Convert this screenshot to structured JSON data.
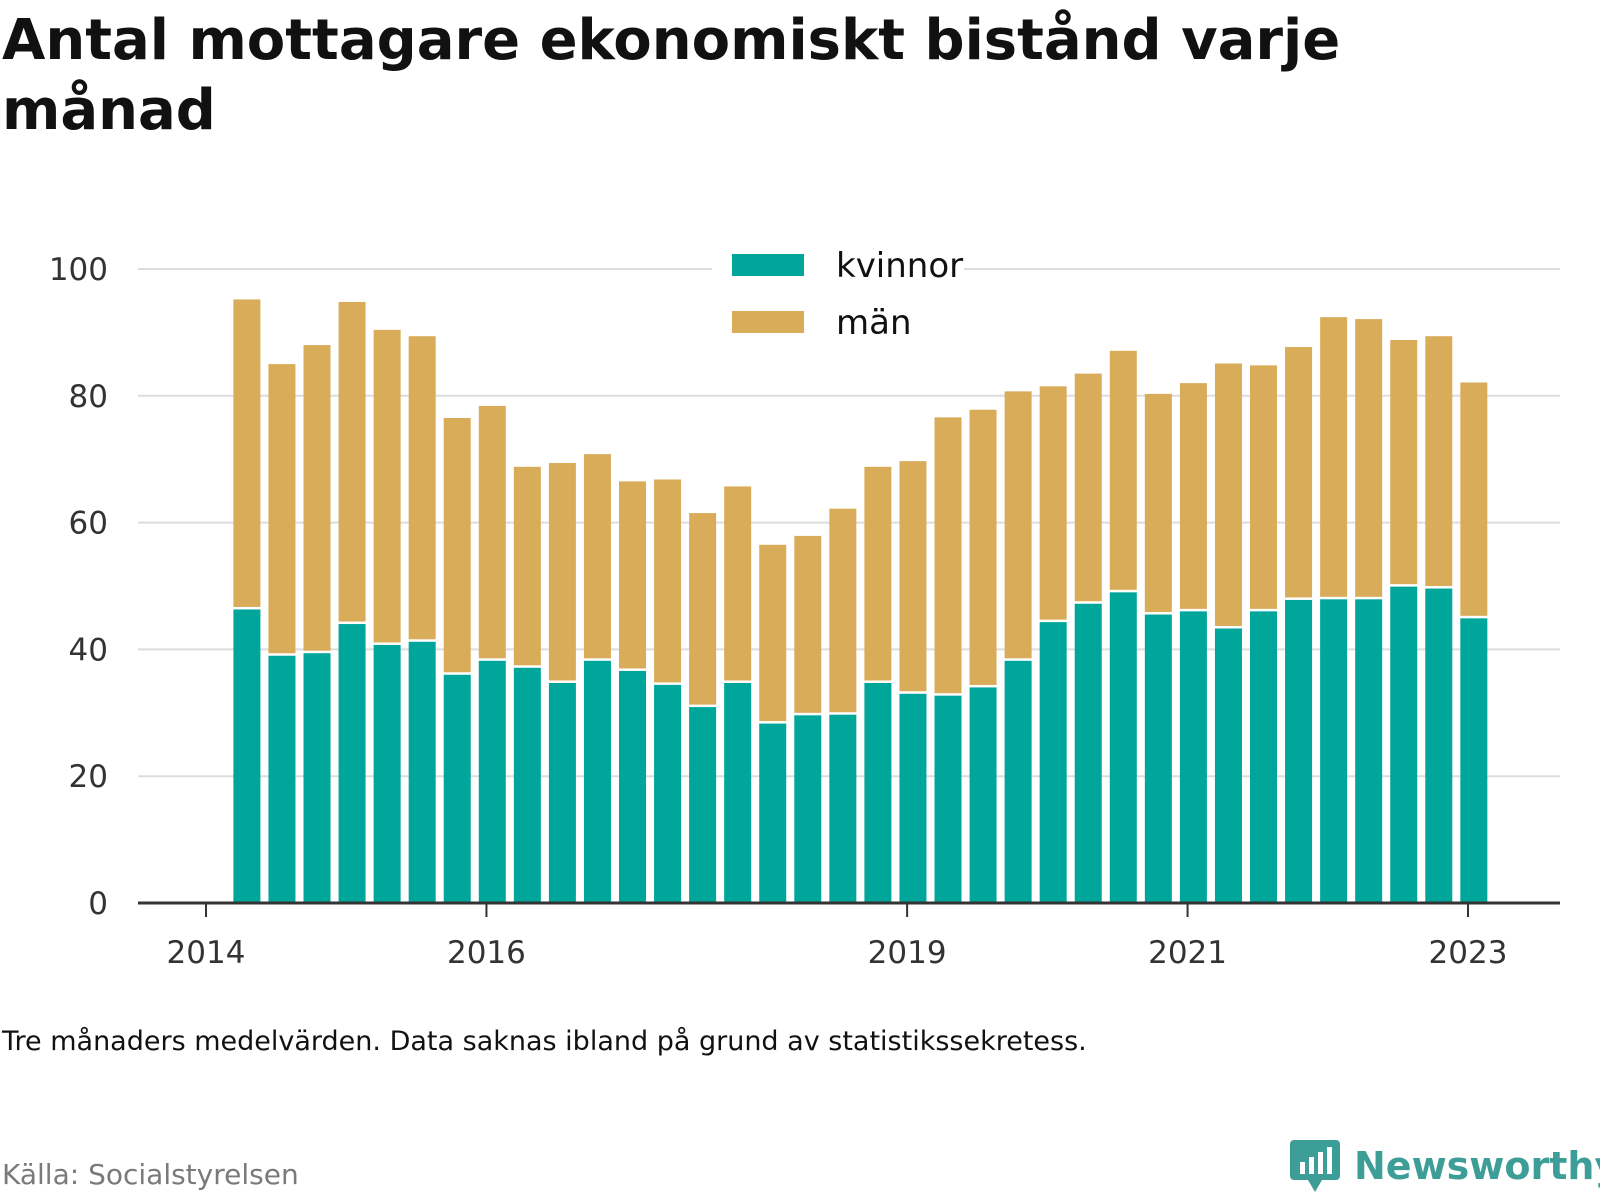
{
  "title": "Antal mottagare ekonomiskt bistånd varje månad",
  "note": "Tre månaders medelvärden. Data saknas ibland på grund av statistikssekretess.",
  "source": "Källa: Socialstyrelsen",
  "brand": "Newsworthy",
  "colors": {
    "kvinnor": "#00a699",
    "man": "#d9ac5a",
    "grid": "#dddddd",
    "axis": "#333333",
    "brand": "#3d9e97"
  },
  "chart_data": {
    "type": "bar",
    "stacked": true,
    "series": [
      {
        "name": "kvinnor",
        "values": [
          46.3,
          39.0,
          39.4,
          44.0,
          40.7,
          41.2,
          36.0,
          38.2,
          37.1,
          34.7,
          38.2,
          36.6,
          34.4,
          30.9,
          34.7,
          28.3,
          29.6,
          29.7,
          34.7,
          33.0,
          32.7,
          34.0,
          38.2,
          44.3,
          47.2,
          49.0,
          45.5,
          46.0,
          43.3,
          46.0,
          47.8,
          47.9,
          47.9,
          49.9,
          49.6,
          44.9
        ]
      },
      {
        "name": "män",
        "values": [
          48.9,
          46.0,
          48.6,
          50.8,
          49.7,
          48.2,
          40.5,
          40.2,
          31.7,
          34.7,
          32.6,
          29.9,
          32.4,
          30.6,
          31.0,
          28.2,
          28.3,
          32.5,
          34.1,
          36.7,
          43.9,
          43.8,
          42.5,
          37.2,
          36.3,
          38.1,
          34.8,
          36.0,
          41.8,
          38.8,
          39.9,
          44.5,
          44.2,
          38.9,
          39.8,
          37.2
        ]
      }
    ],
    "x": [
      "2014-04",
      "2014-07",
      "2014-10",
      "2015-01",
      "2015-04",
      "2015-07",
      "2015-10",
      "2016-01",
      "2016-04",
      "2016-07",
      "2016-10",
      "2017-01",
      "2017-04",
      "2017-07",
      "2017-10",
      "2018-01",
      "2018-04",
      "2018-07",
      "2018-10",
      "2019-01",
      "2019-04",
      "2019-07",
      "2019-10",
      "2020-01",
      "2020-04",
      "2020-07",
      "2020-10",
      "2021-01",
      "2021-04",
      "2021-07",
      "2021-10",
      "2022-01",
      "2022-04",
      "2022-07",
      "2022-10",
      "2023-01"
    ],
    "x_ticks": [
      "2014",
      "2016",
      "2019",
      "2021",
      "2023"
    ],
    "y_ticks": [
      "0",
      "20",
      "40",
      "60",
      "80",
      "100"
    ],
    "ylim": [
      0,
      100
    ],
    "grid": true,
    "legend_position": "top-center"
  }
}
